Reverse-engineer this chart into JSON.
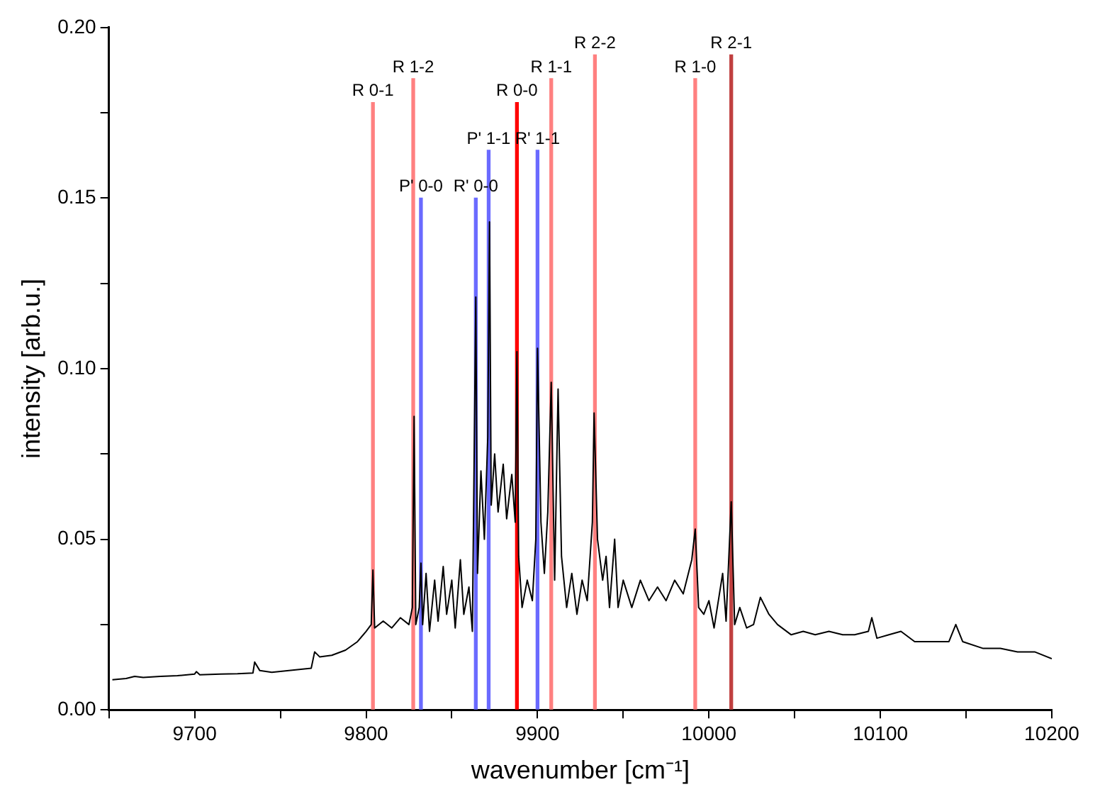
{
  "chart_data": {
    "type": "line",
    "xlabel": "wavenumber [cm⁻¹]",
    "ylabel": "intensity [arb.u.]",
    "xlim": [
      9650,
      10200
    ],
    "xticks": [
      {
        "value": 9650,
        "label": null
      },
      9700,
      {
        "value": 9750,
        "label": null
      },
      9800,
      {
        "value": 9850,
        "label": null
      },
      9900,
      {
        "value": 9950,
        "label": null
      },
      10000,
      {
        "value": 10050,
        "label": null
      },
      10100,
      {
        "value": 10150,
        "label": null
      },
      10200
    ],
    "ylim": [
      0,
      0.2
    ],
    "yticks": [
      {
        "value": 0,
        "label": "0.00"
      },
      {
        "value": 0.025,
        "label": null
      },
      {
        "value": 0.05,
        "label": "0.05"
      },
      {
        "value": 0.075,
        "label": null
      },
      {
        "value": 0.1,
        "label": "0.10"
      },
      {
        "value": 0.125,
        "label": null
      },
      {
        "value": 0.15,
        "label": "0.15"
      },
      {
        "value": 0.175,
        "label": null
      },
      {
        "value": 0.2,
        "label": "0.20"
      }
    ],
    "grid": false,
    "legend": false,
    "marker": "none",
    "line_style": "solid",
    "series": [
      {
        "color": "#000000",
        "x": [
          9652,
          9660,
          9665,
          9670,
          9680,
          9690,
          9700,
          9701,
          9703,
          9715,
          9725,
          9734,
          9735,
          9738,
          9745,
          9755,
          9768,
          9770,
          9773,
          9780,
          9788,
          9795,
          9800,
          9803,
          9804,
          9805,
          9810,
          9815,
          9820,
          9825,
          9827,
          9828,
          9829,
          9831,
          9832,
          9833,
          9835,
          9837,
          9840,
          9842,
          9845,
          9847,
          9850,
          9852,
          9855,
          9857,
          9860,
          9862,
          9864,
          9865,
          9867,
          9869,
          9871,
          9872,
          9873,
          9875,
          9877,
          9880,
          9882,
          9885,
          9887,
          9888,
          9889,
          9891,
          9894,
          9897,
          9899,
          9900,
          9902,
          9904,
          9906,
          9908,
          9910,
          9912,
          9914,
          9917,
          9920,
          9923,
          9926,
          9929,
          9932,
          9933,
          9935,
          9938,
          9940,
          9942,
          9945,
          9947,
          9950,
          9955,
          9960,
          9965,
          9970,
          9975,
          9980,
          9985,
          9990,
          9992,
          9994,
          9997,
          10000,
          10003,
          10008,
          10010,
          10013,
          10015,
          10018,
          10022,
          10026,
          10030,
          10035,
          10040,
          10048,
          10055,
          10062,
          10070,
          10078,
          10085,
          10093,
          10095,
          10098,
          10105,
          10112,
          10120,
          10130,
          10140,
          10144,
          10148,
          10160,
          10170,
          10180,
          10190,
          10200
        ],
        "values": [
          0.0088,
          0.0092,
          0.0098,
          0.0095,
          0.0098,
          0.01,
          0.0105,
          0.0112,
          0.0103,
          0.0105,
          0.0106,
          0.0108,
          0.014,
          0.0115,
          0.011,
          0.0115,
          0.0122,
          0.017,
          0.0155,
          0.016,
          0.0175,
          0.02,
          0.023,
          0.025,
          0.041,
          0.024,
          0.026,
          0.024,
          0.027,
          0.025,
          0.03,
          0.086,
          0.025,
          0.03,
          0.043,
          0.025,
          0.04,
          0.023,
          0.038,
          0.026,
          0.042,
          0.028,
          0.038,
          0.024,
          0.044,
          0.028,
          0.036,
          0.023,
          0.121,
          0.04,
          0.07,
          0.05,
          0.08,
          0.143,
          0.06,
          0.075,
          0.058,
          0.072,
          0.056,
          0.069,
          0.055,
          0.105,
          0.045,
          0.03,
          0.038,
          0.032,
          0.05,
          0.106,
          0.055,
          0.04,
          0.058,
          0.096,
          0.038,
          0.094,
          0.045,
          0.03,
          0.04,
          0.028,
          0.038,
          0.032,
          0.055,
          0.087,
          0.05,
          0.038,
          0.045,
          0.03,
          0.05,
          0.03,
          0.038,
          0.03,
          0.038,
          0.032,
          0.036,
          0.032,
          0.038,
          0.034,
          0.044,
          0.053,
          0.03,
          0.028,
          0.032,
          0.024,
          0.04,
          0.026,
          0.061,
          0.025,
          0.03,
          0.024,
          0.025,
          0.033,
          0.028,
          0.025,
          0.022,
          0.023,
          0.022,
          0.023,
          0.022,
          0.022,
          0.023,
          0.027,
          0.021,
          0.022,
          0.023,
          0.02,
          0.02,
          0.02,
          0.025,
          0.02,
          0.018,
          0.018,
          0.017,
          0.017,
          0.015
        ]
      },
      {
        "type": "bar",
        "x": [
          9804,
          9827.5,
          9832,
          9864,
          9871.5,
          9888,
          9900,
          9908,
          9933.5,
          9992,
          10013
        ],
        "values": [
          0.178,
          0.185,
          0.15,
          0.15,
          0.164,
          0.178,
          0.164,
          0.185,
          0.192,
          0.185,
          0.192
        ],
        "colors": [
          "#ff8080",
          "#ff8080",
          "#6a6aff",
          "#6a6aff",
          "#6a6aff",
          "#ff0000",
          "#6a6aff",
          "#ff8080",
          "#ff8080",
          "#ff8080",
          "#c04040"
        ],
        "value_labels": [
          "R 0-1",
          "R 1-2",
          "P' 0-0",
          "R' 0-0",
          "P' 1-1",
          "R 0-0",
          "R' 1-1",
          "R 1-1",
          "R 2-2",
          "R 1-0",
          "R 2-1"
        ]
      }
    ]
  }
}
